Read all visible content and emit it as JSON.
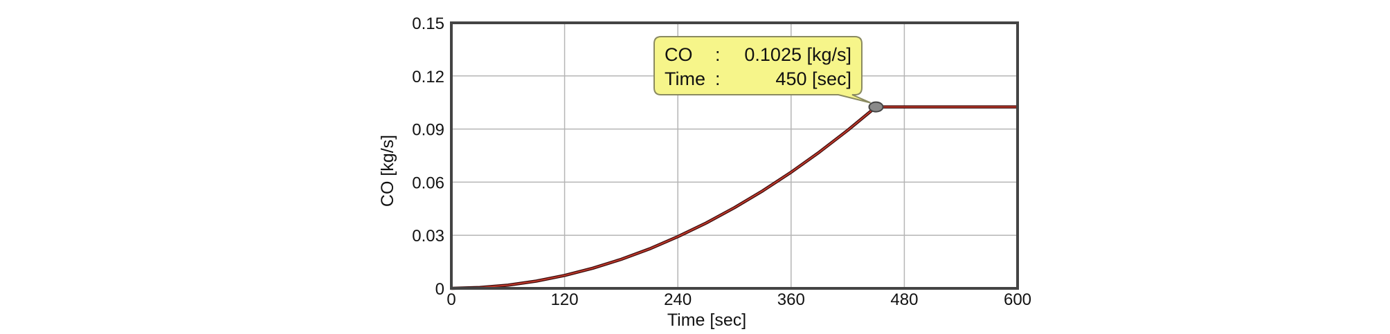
{
  "chart_data": {
    "type": "line",
    "xlabel": "Time [sec]",
    "ylabel": "CO [kg/s]",
    "xlim": [
      0,
      600
    ],
    "ylim": [
      0,
      0.15
    ],
    "x_ticks": [
      0,
      120,
      240,
      360,
      480,
      600
    ],
    "x_tick_labels": [
      "0",
      "120",
      "240",
      "360",
      "480",
      "600"
    ],
    "y_ticks": [
      0,
      0.03,
      0.06,
      0.09,
      0.12,
      0.15
    ],
    "y_tick_labels": [
      "0",
      "0.03",
      "0.06",
      "0.09",
      "0.12",
      "0.15"
    ],
    "grid": true,
    "series": [
      {
        "color": "#c0392b",
        "x": [
          0,
          30,
          60,
          90,
          120,
          150,
          180,
          210,
          240,
          270,
          300,
          330,
          360,
          390,
          420,
          450,
          480,
          510,
          540,
          570,
          600
        ],
        "y": [
          0,
          0.0005,
          0.0018,
          0.0041,
          0.0073,
          0.0114,
          0.0164,
          0.0223,
          0.0292,
          0.0369,
          0.0456,
          0.0551,
          0.0656,
          0.077,
          0.0893,
          0.1025,
          0.1025,
          0.1025,
          0.1025,
          0.1025,
          0.1025
        ]
      }
    ],
    "annotation": {
      "x": 450,
      "y": 0.1025,
      "line1_label": "CO",
      "line1_sep": ":",
      "line1_value": "0.1025 [kg/s]",
      "line2_label": "Time",
      "line2_sep": ":",
      "line2_value": "450 [sec]",
      "fill": "#f6f58a",
      "marker_color": "#8a8a8a"
    }
  }
}
